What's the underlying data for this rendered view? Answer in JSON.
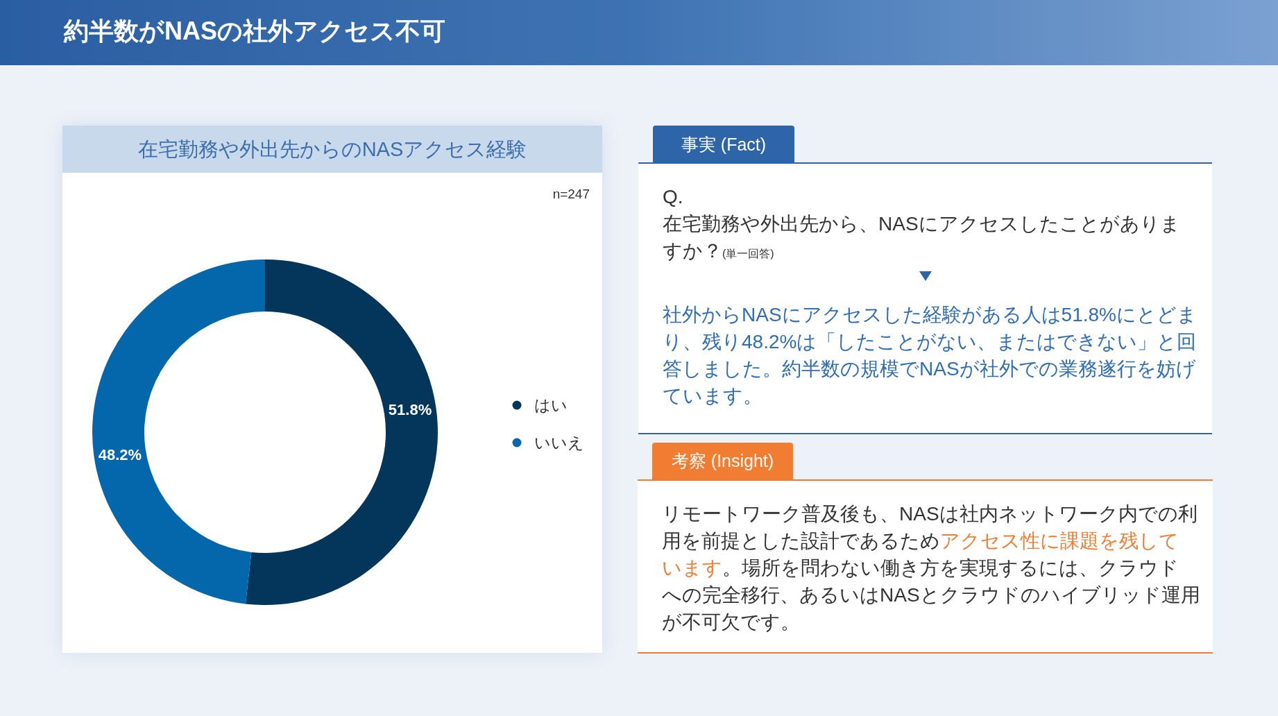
{
  "chart_data": [
    {
      "type": "donut",
      "title": "約半数がNASの社外アクセス不可",
      "subtitle": "在宅勤務や外出先からのNASアクセス経験",
      "categories": [
        "はい",
        "いいえ"
      ],
      "values": [
        51.8,
        48.2
      ],
      "colors": [
        "#03365a",
        "#0467ab"
      ],
      "value_labels": [
        "51.8%",
        "48.2%"
      ],
      "legend": "right",
      "annotations": [
        "n=247"
      ]
    },
    {
      "type": "other",
      "title": "事実 (Fact)",
      "annotations": [
        "Q.",
        "在宅勤務や外出先から、NASにアクセスしたことがありま",
        "すか？",
        "(単一回答)",
        "社外からNASにアクセスした経験がある人は51.8%にとどまり、残り48.2%は「したことがない、またはできない」と回答しました。約半数の規模でNASが社外での業務遂行を妨げています。"
      ],
      "colors": [
        "#333333",
        "#333333",
        "#333333",
        "#333333",
        "#2f6db5"
      ]
    },
    {
      "type": "other",
      "title": "考察 (Insight)",
      "annotations": [
        "リモートワーク普及後も、NASは社内ネットワーク内での利",
        "用を前提とした設計であるため",
        "アクセス性に課題を残して",
        "います",
        "。場所を問わない働き方を実現するには、クラウド",
        "への完全移行、あるいはNASとクラウドのハイブリッド運用",
        "が不可欠です。"
      ],
      "colors": [
        "#333333",
        "#333333",
        "#f07d32",
        "#f07d32",
        "#333333",
        "#333333",
        "#333333"
      ]
    }
  ]
}
